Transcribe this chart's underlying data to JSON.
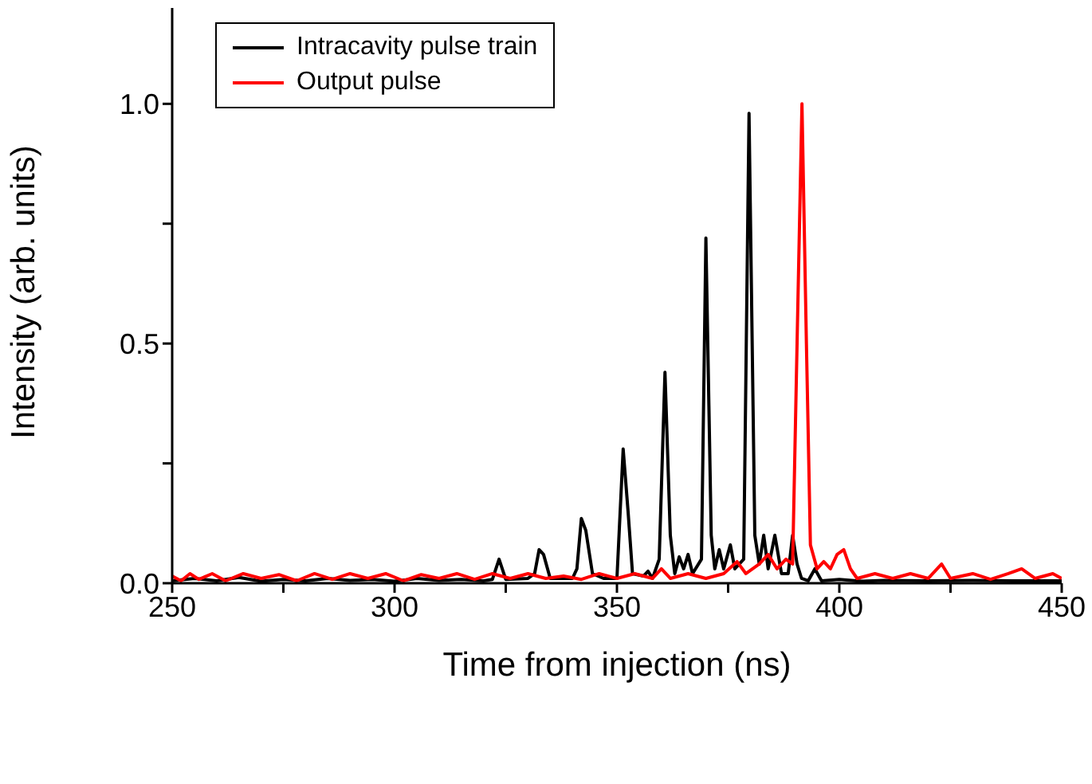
{
  "chart_data": {
    "type": "line",
    "xlabel": "Time from injection (ns)",
    "ylabel": "Intensity (arb. units)",
    "xlim": [
      250,
      450
    ],
    "xticks": [
      250,
      {
        "value": 275,
        "label": null
      },
      300,
      {
        "value": 325,
        "label": null
      },
      350,
      {
        "value": 375,
        "label": null
      },
      400,
      {
        "value": 425,
        "label": null
      },
      450
    ],
    "ylim": [
      0,
      1.2
    ],
    "yticks": [
      {
        "value": 0,
        "label": "0.0"
      },
      {
        "value": 0.25,
        "label": null
      },
      {
        "value": 0.5,
        "label": "0.5"
      },
      {
        "value": 0.75,
        "label": null
      },
      {
        "value": 1,
        "label": "1.0"
      }
    ],
    "grid": false,
    "legend": "top left",
    "marker": "none",
    "line_style": "solid",
    "series": [
      {
        "name": "Intracavity pulse train",
        "color": "#000000",
        "x": [
          250,
          255,
          260,
          265,
          270,
          275,
          280,
          285,
          290,
          295,
          300,
          305,
          310,
          315,
          320,
          322,
          323.5,
          325,
          330,
          331.5,
          332.5,
          333.5,
          335,
          340,
          341,
          342,
          343,
          344.5,
          347,
          350,
          351.4,
          352.5,
          353.5,
          356,
          357,
          358,
          359.5,
          360.8,
          362,
          363,
          364,
          365,
          366,
          367,
          369,
          370,
          371.2,
          372,
          373,
          374,
          375.5,
          376.5,
          378.5,
          379.7,
          381,
          382,
          383,
          384,
          385.5,
          387,
          388.5,
          389.5,
          390.5,
          391.5,
          393,
          394.5,
          396,
          400,
          405,
          410,
          420,
          430,
          440,
          450
        ],
        "values": [
          0.005,
          0.01,
          0.005,
          0.012,
          0.004,
          0.008,
          0.005,
          0.01,
          0.006,
          0.008,
          0.004,
          0.01,
          0.006,
          0.008,
          0.005,
          0.008,
          0.05,
          0.008,
          0.01,
          0.02,
          0.07,
          0.06,
          0.01,
          0.01,
          0.03,
          0.135,
          0.11,
          0.02,
          0.01,
          0.01,
          0.28,
          0.15,
          0.02,
          0.015,
          0.025,
          0.01,
          0.05,
          0.44,
          0.1,
          0.02,
          0.055,
          0.03,
          0.06,
          0.02,
          0.05,
          0.72,
          0.1,
          0.03,
          0.07,
          0.03,
          0.08,
          0.03,
          0.05,
          0.98,
          0.1,
          0.04,
          0.1,
          0.03,
          0.1,
          0.02,
          0.02,
          0.1,
          0.04,
          0.01,
          0.005,
          0.03,
          0.005,
          0.008,
          0.004,
          0.006,
          0.005,
          0.006,
          0.005,
          0.005
        ]
      },
      {
        "name": "Output pulse",
        "color": "#ff0000",
        "x": [
          250,
          252,
          254,
          256,
          259,
          262,
          266,
          270,
          274,
          278,
          282,
          286,
          290,
          294,
          298,
          302,
          306,
          310,
          314,
          318,
          322,
          326,
          330,
          334,
          338,
          342,
          346,
          350,
          354,
          358,
          360,
          362,
          366,
          370,
          374,
          377,
          379,
          382,
          384,
          386,
          388,
          389.5,
          390.5,
          391.6,
          392.6,
          393.5,
          395,
          396.5,
          398,
          399.5,
          401,
          402.5,
          404,
          408,
          412,
          416,
          420,
          423,
          425,
          430,
          434,
          438,
          441,
          444,
          448,
          450
        ],
        "values": [
          0.015,
          0.005,
          0.02,
          0.008,
          0.02,
          0.005,
          0.02,
          0.01,
          0.018,
          0.005,
          0.02,
          0.008,
          0.02,
          0.01,
          0.02,
          0.005,
          0.018,
          0.01,
          0.02,
          0.008,
          0.02,
          0.01,
          0.02,
          0.01,
          0.015,
          0.008,
          0.02,
          0.01,
          0.02,
          0.01,
          0.03,
          0.01,
          0.02,
          0.01,
          0.02,
          0.045,
          0.02,
          0.04,
          0.06,
          0.03,
          0.05,
          0.04,
          0.5,
          1.0,
          0.5,
          0.08,
          0.03,
          0.045,
          0.03,
          0.06,
          0.07,
          0.03,
          0.01,
          0.02,
          0.01,
          0.02,
          0.01,
          0.04,
          0.01,
          0.02,
          0.008,
          0.02,
          0.03,
          0.01,
          0.02,
          0.01
        ]
      }
    ]
  }
}
